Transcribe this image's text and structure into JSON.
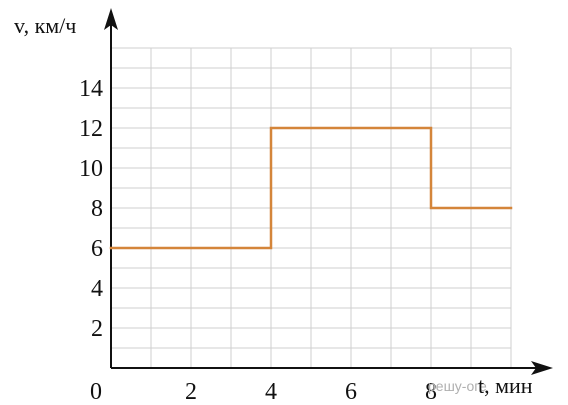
{
  "chart_data": {
    "type": "line",
    "step": true,
    "x": [
      0,
      4,
      4,
      8,
      8,
      10
    ],
    "y": [
      6,
      6,
      12,
      12,
      8,
      8
    ],
    "xlabel": "t, мин",
    "ylabel": "v, км/ч",
    "x_tick_labels": [
      "0",
      "2",
      "4",
      "6",
      "8"
    ],
    "y_tick_labels": [
      "2",
      "4",
      "6",
      "8",
      "10",
      "12",
      "14"
    ],
    "xlim": [
      0,
      10
    ],
    "ylim": [
      0,
      16
    ],
    "grid": true,
    "line_color": "#d4853a",
    "axis_color": "#111111",
    "grid_color": "#cfcfcf"
  },
  "watermark": "решу-оге"
}
